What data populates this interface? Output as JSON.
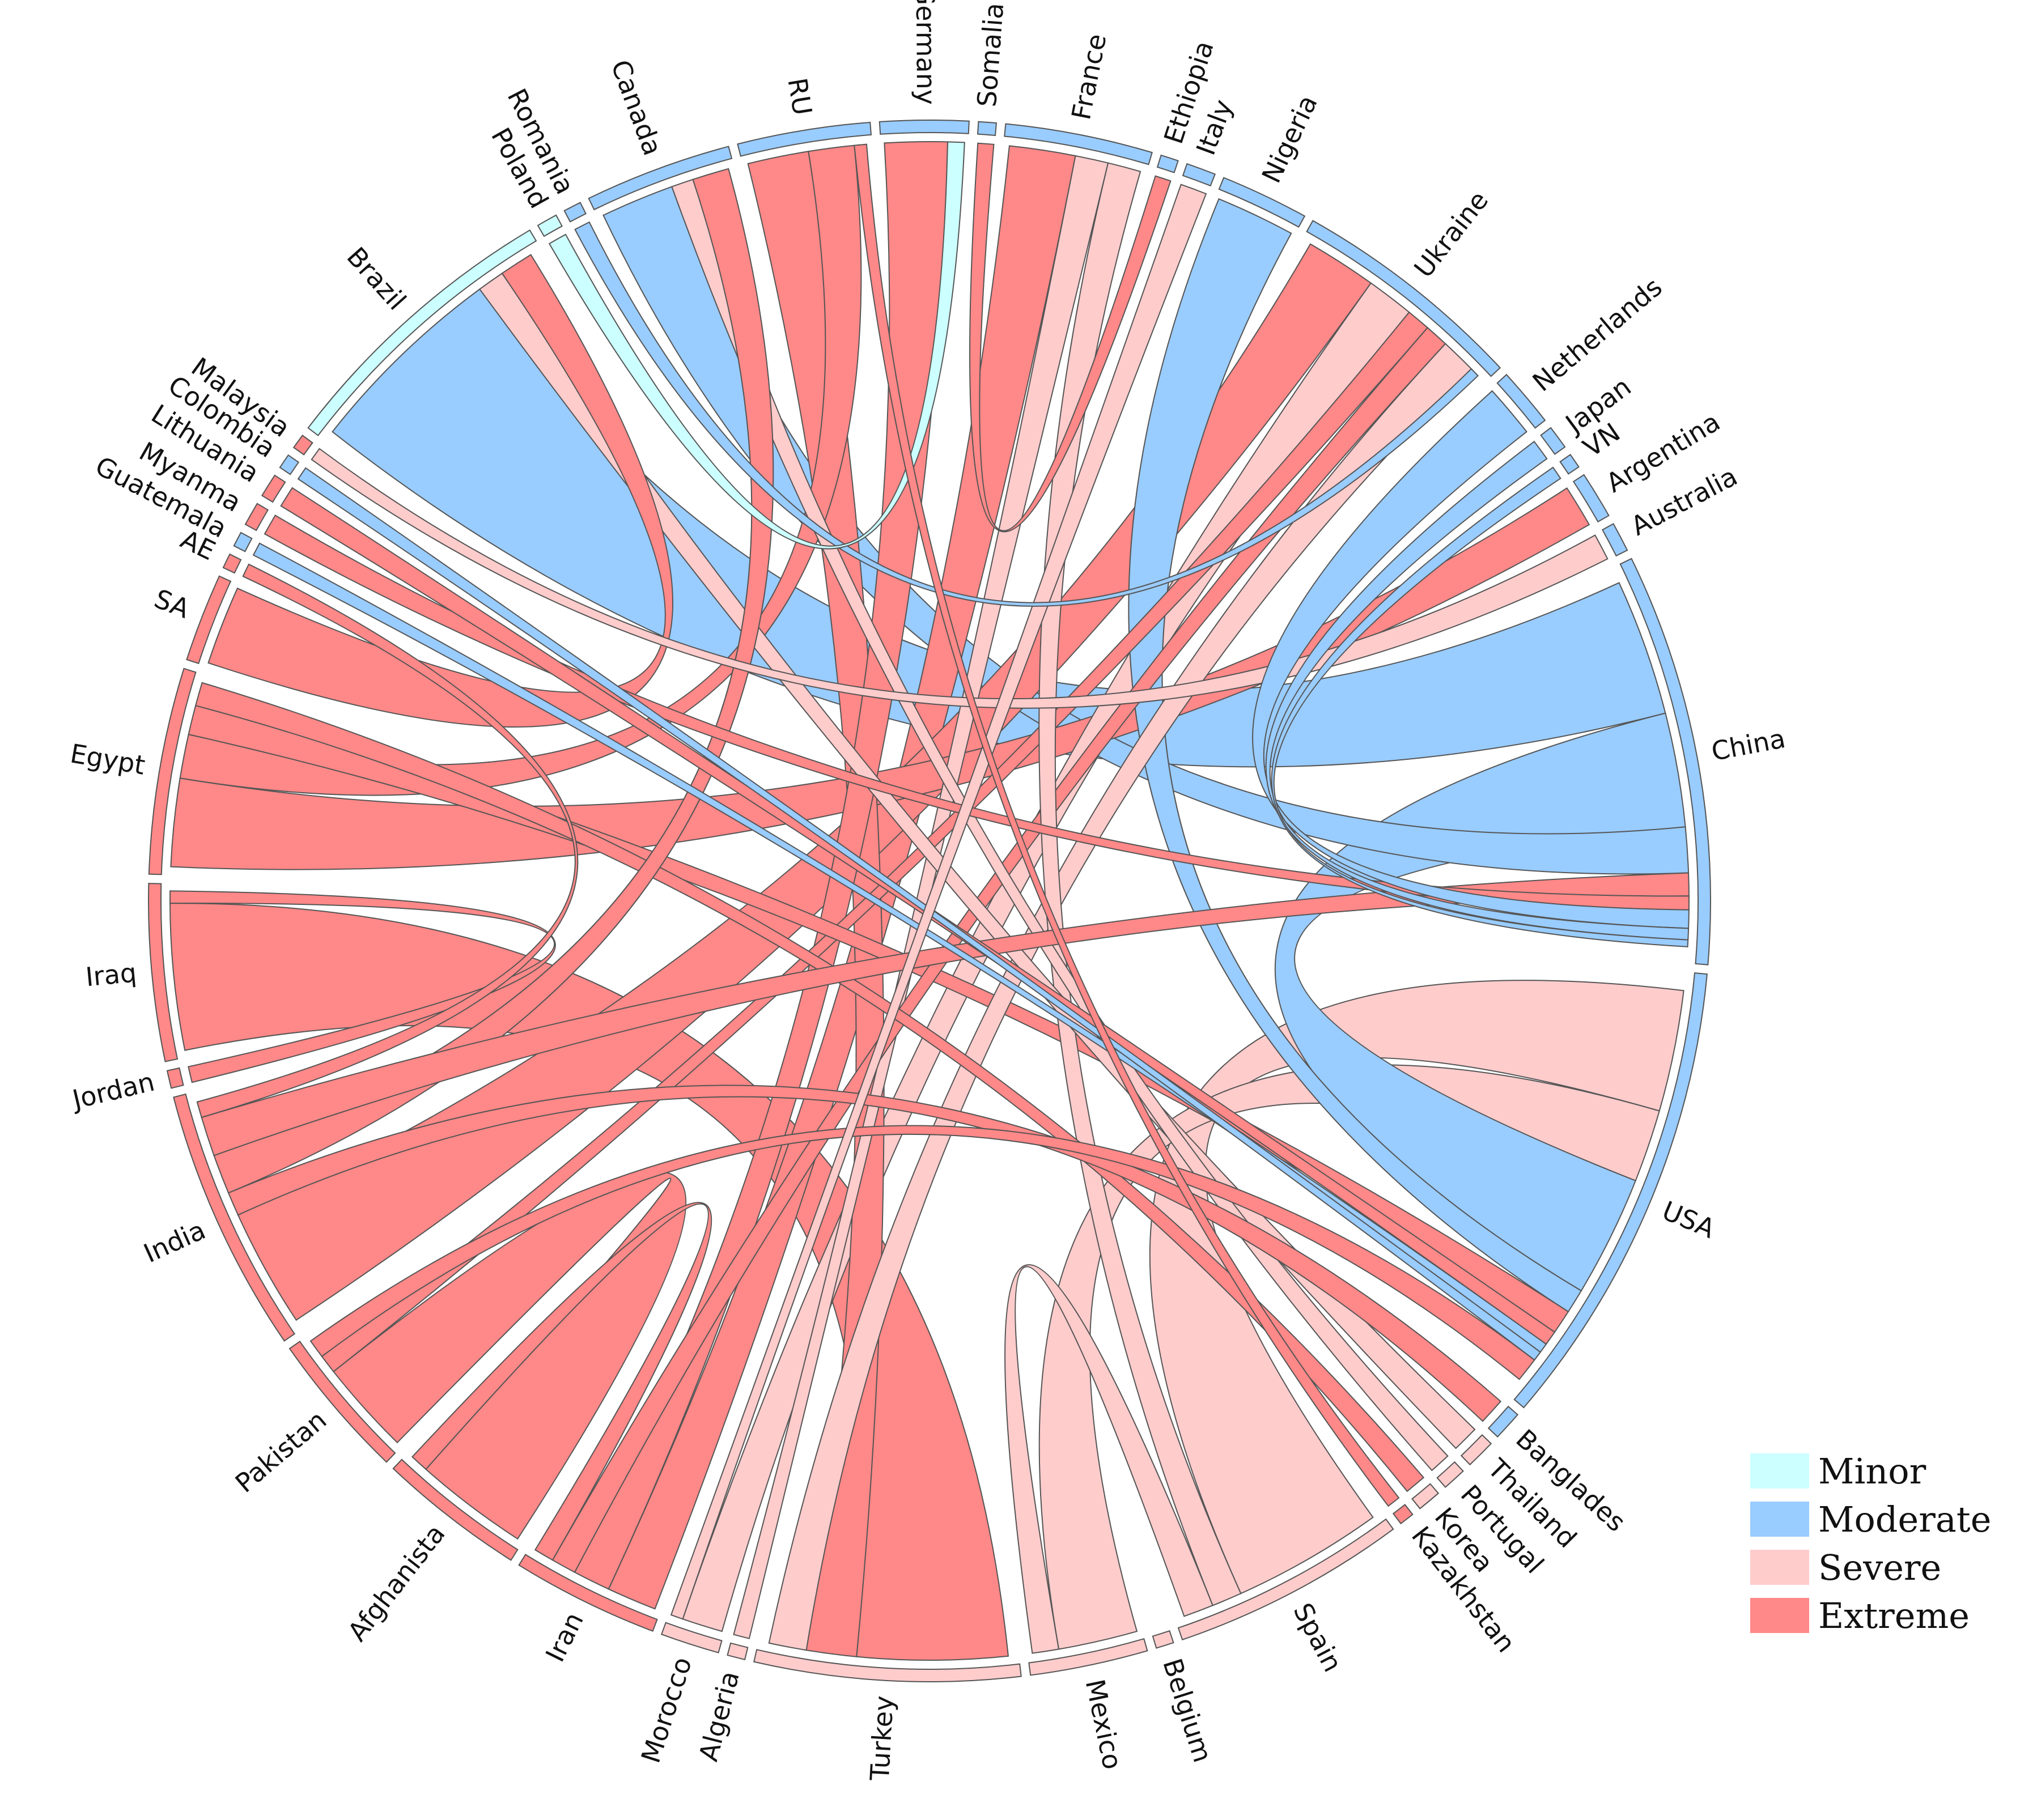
{
  "chart_data": {
    "type": "chord",
    "title": "",
    "severity_levels": [
      {
        "name": "Minor",
        "color": "#ccffff"
      },
      {
        "name": "Moderate",
        "color": "#99ccff"
      },
      {
        "name": "Severe",
        "color": "#ffcccc"
      },
      {
        "name": "Extreme",
        "color": "#ff8888"
      }
    ],
    "countries": [
      {
        "name": "Brazil",
        "severity": "Minor",
        "size": 10
      },
      {
        "name": "Poland",
        "severity": "Minor",
        "size": 0.7
      },
      {
        "name": "Romania",
        "severity": "Moderate",
        "size": 0.6
      },
      {
        "name": "Canada",
        "severity": "Moderate",
        "size": 5
      },
      {
        "name": "RU",
        "severity": "Moderate",
        "size": 4.5
      },
      {
        "name": "Germany",
        "severity": "Moderate",
        "size": 3
      },
      {
        "name": "Somalia",
        "severity": "Moderate",
        "size": 0.6
      },
      {
        "name": "France",
        "severity": "Moderate",
        "size": 5
      },
      {
        "name": "Ethiopia",
        "severity": "Moderate",
        "size": 0.6
      },
      {
        "name": "Italy",
        "severity": "Moderate",
        "size": 1
      },
      {
        "name": "Nigeria",
        "severity": "Moderate",
        "size": 3
      },
      {
        "name": "Ukraine",
        "severity": "Moderate",
        "size": 8
      },
      {
        "name": "Netherlands",
        "severity": "Moderate",
        "size": 2
      },
      {
        "name": "Japan",
        "severity": "Moderate",
        "size": 0.8
      },
      {
        "name": "VN",
        "severity": "Moderate",
        "size": 0.5
      },
      {
        "name": "Argentina",
        "severity": "Moderate",
        "size": 1.6
      },
      {
        "name": "Australia",
        "severity": "Moderate",
        "size": 1
      },
      {
        "name": "China",
        "severity": "Moderate",
        "size": 14
      },
      {
        "name": "USA",
        "severity": "Moderate",
        "size": 16
      },
      {
        "name": "Banglades",
        "severity": "Moderate",
        "size": 1
      },
      {
        "name": "Thailand",
        "severity": "Severe",
        "size": 1
      },
      {
        "name": "Portugal",
        "severity": "Severe",
        "size": 0.8
      },
      {
        "name": "Korea",
        "severity": "Severe",
        "size": 0.8
      },
      {
        "name": "Kazakhstan",
        "severity": "Extreme",
        "size": 0.5
      },
      {
        "name": "Spain",
        "severity": "Severe",
        "size": 8
      },
      {
        "name": "Belgium",
        "severity": "Severe",
        "size": 0.6
      },
      {
        "name": "Mexico",
        "severity": "Severe",
        "size": 4
      },
      {
        "name": "Turkey",
        "severity": "Severe",
        "size": 9
      },
      {
        "name": "Algeria",
        "severity": "Severe",
        "size": 0.6
      },
      {
        "name": "Morocco",
        "severity": "Severe",
        "size": 2
      },
      {
        "name": "Iran",
        "severity": "Extreme",
        "size": 5
      },
      {
        "name": "Afghanista",
        "severity": "Extreme",
        "size": 5
      },
      {
        "name": "Pakistan",
        "severity": "Extreme",
        "size": 5
      },
      {
        "name": "India",
        "severity": "Extreme",
        "size": 9
      },
      {
        "name": "Jordan",
        "severity": "Extreme",
        "size": 0.6
      },
      {
        "name": "Iraq",
        "severity": "Extreme",
        "size": 6
      },
      {
        "name": "Egypt",
        "severity": "Extreme",
        "size": 7
      },
      {
        "name": "SA",
        "severity": "Extreme",
        "size": 3
      },
      {
        "name": "AE",
        "severity": "Extreme",
        "size": 0.5
      },
      {
        "name": "Guatemala",
        "severity": "Moderate",
        "size": 0.5
      },
      {
        "name": "Myanma",
        "severity": "Extreme",
        "size": 0.8
      },
      {
        "name": "Lithuania",
        "severity": "Extreme",
        "size": 0.8
      },
      {
        "name": "Colombia",
        "severity": "Moderate",
        "size": 0.5
      },
      {
        "name": "Malaysia",
        "severity": "Extreme",
        "size": 0.5
      }
    ],
    "flows": [
      {
        "from": "Iraq",
        "to": "Turkey",
        "value": 6,
        "severity": "Extreme"
      },
      {
        "from": "Afghanista",
        "to": "Pakistan",
        "value": 5,
        "severity": "Extreme"
      },
      {
        "from": "Spain",
        "to": "USA",
        "value": 5,
        "severity": "Severe"
      },
      {
        "from": "Mexico",
        "to": "USA",
        "value": 3,
        "severity": "Severe"
      },
      {
        "from": "Brazil",
        "to": "China",
        "value": 6,
        "severity": "Moderate"
      },
      {
        "from": "China",
        "to": "USA",
        "value": 5,
        "severity": "Moderate"
      },
      {
        "from": "Canada",
        "to": "China",
        "value": 2,
        "severity": "Moderate"
      },
      {
        "from": "Iran",
        "to": "France",
        "value": 2,
        "severity": "Extreme"
      },
      {
        "from": "India",
        "to": "Ukraine",
        "value": 3,
        "severity": "Extreme"
      },
      {
        "from": "Egypt",
        "to": "Argentina",
        "value": 3,
        "severity": "Extreme"
      },
      {
        "from": "Morocco",
        "to": "Ukraine",
        "value": 2,
        "severity": "Severe"
      },
      {
        "from": "Turkey",
        "to": "RU",
        "value": 2,
        "severity": "Extreme"
      },
      {
        "from": "Nigeria",
        "to": "USA",
        "value": 1,
        "severity": "Moderate"
      },
      {
        "from": "Algeria",
        "to": "France",
        "value": 1,
        "severity": "Severe"
      },
      {
        "from": "Egypt",
        "to": "RU",
        "value": 1.5,
        "severity": "Extreme"
      },
      {
        "from": "Iran",
        "to": "Germany",
        "value": 1.5,
        "severity": "Extreme"
      },
      {
        "from": "Pakistan",
        "to": "Ukraine",
        "value": 1,
        "severity": "Extreme"
      },
      {
        "from": "Egypt",
        "to": "USA",
        "value": 1,
        "severity": "Extreme"
      },
      {
        "from": "Iran",
        "to": "Ukraine",
        "value": 1,
        "severity": "Extreme"
      },
      {
        "from": "Turkey",
        "to": "Ukraine",
        "value": 1.5,
        "severity": "Severe"
      },
      {
        "from": "Spain",
        "to": "France",
        "value": 1,
        "severity": "Severe"
      },
      {
        "from": "Korea",
        "to": "Egypt",
        "value": 0.8,
        "severity": "Extreme"
      },
      {
        "from": "Thailand",
        "to": "Brazil",
        "value": 0.8,
        "severity": "Severe"
      },
      {
        "from": "Portugal",
        "to": "Canada",
        "value": 0.6,
        "severity": "Severe"
      },
      {
        "from": "Banglades",
        "to": "India",
        "value": 0.6,
        "severity": "Extreme"
      },
      {
        "from": "India",
        "to": "Canada",
        "value": 1,
        "severity": "Extreme"
      },
      {
        "from": "India",
        "to": "China",
        "value": 1,
        "severity": "Extreme"
      },
      {
        "from": "SA",
        "to": "Brazil",
        "value": 1,
        "severity": "Extreme"
      },
      {
        "from": "Myanma",
        "to": "China",
        "value": 0.6,
        "severity": "Extreme"
      },
      {
        "from": "Lithuania",
        "to": "USA",
        "value": 0.6,
        "severity": "Extreme"
      },
      {
        "from": "Guatemala",
        "to": "USA",
        "value": 0.4,
        "severity": "Moderate"
      },
      {
        "from": "Colombia",
        "to": "USA",
        "value": 0.4,
        "severity": "Moderate"
      },
      {
        "from": "Malaysia",
        "to": "Australia",
        "value": 0.4,
        "severity": "Severe"
      },
      {
        "from": "Netherlands",
        "to": "China",
        "value": 0.8,
        "severity": "Moderate"
      },
      {
        "from": "Japan",
        "to": "China",
        "value": 0.5,
        "severity": "Moderate"
      },
      {
        "from": "Mexico",
        "to": "Spain",
        "value": 1,
        "severity": "Severe"
      },
      {
        "from": "Iraq",
        "to": "Jordan",
        "value": 0.5,
        "severity": "Extreme"
      },
      {
        "from": "Pakistan",
        "to": "USA",
        "value": 1,
        "severity": "Extreme"
      },
      {
        "from": "Afghanista",
        "to": "Iran",
        "value": 0.8,
        "severity": "Extreme"
      },
      {
        "from": "Italy",
        "to": "Morocco",
        "value": 0.6,
        "severity": "Severe"
      },
      {
        "from": "Somalia",
        "to": "Ethiopia",
        "value": 0.4,
        "severity": "Extreme"
      },
      {
        "from": "Romania",
        "to": "Ukraine",
        "value": 0.4,
        "severity": "Moderate"
      },
      {
        "from": "Poland",
        "to": "Germany",
        "value": 0.4,
        "severity": "Minor"
      },
      {
        "from": "AE",
        "to": "India",
        "value": 0.4,
        "severity": "Extreme"
      },
      {
        "from": "Kazakhstan",
        "to": "RU",
        "value": 0.4,
        "severity": "Extreme"
      },
      {
        "from": "VN",
        "to": "China",
        "value": 0.3,
        "severity": "Moderate"
      }
    ]
  }
}
